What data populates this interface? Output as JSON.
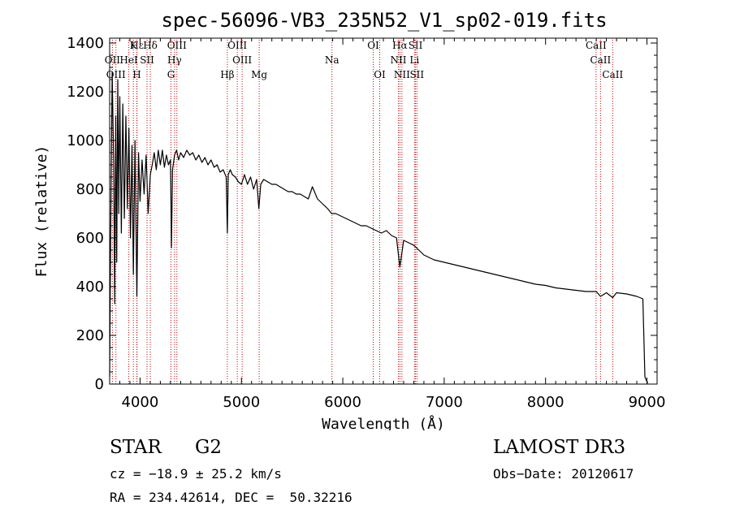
{
  "chart_data": {
    "type": "line",
    "title": "spec-56096-VB3_235N52_V1_sp02-019.fits",
    "xlabel": "Wavelength (Å)",
    "ylabel": "Flux (relative)",
    "xlim": [
      3700,
      9100
    ],
    "ylim": [
      0,
      1420
    ],
    "xticks": [
      4000,
      5000,
      6000,
      7000,
      8000,
      9000
    ],
    "yticks": [
      0,
      200,
      400,
      600,
      800,
      1000,
      1200,
      1400
    ],
    "grid": false,
    "line_color": "#000000",
    "marker_color": "#cc0000",
    "series": [
      {
        "name": "flux",
        "x": [
          3700,
          3710,
          3725,
          3740,
          3750,
          3760,
          3770,
          3780,
          3790,
          3800,
          3815,
          3830,
          3845,
          3860,
          3875,
          3890,
          3905,
          3920,
          3934,
          3950,
          3968,
          3985,
          4000,
          4020,
          4040,
          4060,
          4080,
          4101,
          4120,
          4140,
          4160,
          4180,
          4200,
          4220,
          4240,
          4260,
          4280,
          4300,
          4310,
          4320,
          4340,
          4360,
          4380,
          4400,
          4430,
          4460,
          4490,
          4520,
          4550,
          4580,
          4610,
          4640,
          4670,
          4700,
          4730,
          4760,
          4790,
          4820,
          4850,
          4861,
          4870,
          4890,
          4910,
          4940,
          4970,
          5000,
          5030,
          5060,
          5090,
          5120,
          5150,
          5172,
          5190,
          5220,
          5260,
          5300,
          5340,
          5380,
          5420,
          5460,
          5500,
          5540,
          5580,
          5620,
          5660,
          5700,
          5750,
          5800,
          5850,
          5890,
          5930,
          5980,
          6030,
          6080,
          6130,
          6180,
          6230,
          6280,
          6330,
          6380,
          6430,
          6480,
          6530,
          6563,
          6600,
          6650,
          6700,
          6750,
          6800,
          6900,
          7000,
          7100,
          7200,
          7300,
          7400,
          7500,
          7600,
          7700,
          7800,
          7900,
          8000,
          8100,
          8200,
          8300,
          8400,
          8500,
          8542,
          8600,
          8662,
          8700,
          8800,
          8900,
          8960,
          8980,
          9000,
          9010
        ],
        "y": [
          30,
          600,
          1280,
          900,
          330,
          1100,
          500,
          1250,
          700,
          1180,
          620,
          1150,
          680,
          1100,
          720,
          1050,
          600,
          980,
          450,
          1000,
          360,
          950,
          750,
          920,
          780,
          940,
          700,
          860,
          900,
          950,
          880,
          960,
          900,
          960,
          890,
          940,
          900,
          920,
          560,
          880,
          940,
          960,
          920,
          950,
          930,
          960,
          940,
          950,
          920,
          940,
          910,
          930,
          900,
          920,
          890,
          900,
          870,
          880,
          850,
          620,
          860,
          880,
          860,
          850,
          830,
          820,
          860,
          820,
          850,
          800,
          840,
          720,
          820,
          840,
          830,
          820,
          820,
          810,
          800,
          790,
          790,
          780,
          780,
          770,
          760,
          810,
          760,
          740,
          720,
          700,
          700,
          690,
          680,
          670,
          660,
          650,
          650,
          640,
          630,
          620,
          630,
          610,
          600,
          480,
          590,
          580,
          570,
          550,
          530,
          510,
          500,
          490,
          480,
          470,
          460,
          450,
          440,
          430,
          420,
          410,
          405,
          395,
          390,
          385,
          380,
          380,
          360,
          375,
          355,
          375,
          370,
          360,
          350,
          30,
          10,
          5
        ]
      }
    ],
    "lines": [
      {
        "label": "Hε",
        "wl": 3970,
        "row": 0
      },
      {
        "label": "Hδ",
        "wl": 4101,
        "row": 0
      },
      {
        "label": "K",
        "wl": 3934,
        "row": 0
      },
      {
        "label": "OIII",
        "wl": 4363,
        "row": 0
      },
      {
        "label": "OIII",
        "wl": 4959,
        "row": 0
      },
      {
        "label": "OI",
        "wl": 6300,
        "row": 0
      },
      {
        "label": "Hα",
        "wl": 6563,
        "row": 0
      },
      {
        "label": "SII",
        "wl": 6717,
        "row": 0
      },
      {
        "label": "CaII",
        "wl": 8498,
        "row": 0
      },
      {
        "label": "OII",
        "wl": 3727,
        "row": 1
      },
      {
        "label": "HeI",
        "wl": 3889,
        "row": 1
      },
      {
        "label": "SII",
        "wl": 4069,
        "row": 1
      },
      {
        "label": "Hγ",
        "wl": 4340,
        "row": 1
      },
      {
        "label": "OIII",
        "wl": 5007,
        "row": 1
      },
      {
        "label": "Na",
        "wl": 5893,
        "row": 1
      },
      {
        "label": "NII",
        "wl": 6548,
        "row": 1
      },
      {
        "label": "Li",
        "wl": 6707,
        "row": 1
      },
      {
        "label": "CaII",
        "wl": 8542,
        "row": 1
      },
      {
        "label": "OIII",
        "wl": 3762,
        "row": 2
      },
      {
        "label": "H",
        "wl": 3968,
        "row": 2
      },
      {
        "label": "G",
        "wl": 4305,
        "row": 2
      },
      {
        "label": "Hβ",
        "wl": 4861,
        "row": 2
      },
      {
        "label": "Mg",
        "wl": 5175,
        "row": 2
      },
      {
        "label": "OI",
        "wl": 6364,
        "row": 2
      },
      {
        "label": "NII",
        "wl": 6583,
        "row": 2
      },
      {
        "label": "SII",
        "wl": 6731,
        "row": 2
      },
      {
        "label": "CaII",
        "wl": 8662,
        "row": 2
      }
    ]
  },
  "info": {
    "object_type": "STAR",
    "subclass": "G2",
    "survey": "LAMOST DR3",
    "redshift": "cz = −18.9 ± 25.2 km/s",
    "obs_date": "Obs−Date: 20120617",
    "coords": "RA = 234.42614, DEC =  50.32216"
  }
}
